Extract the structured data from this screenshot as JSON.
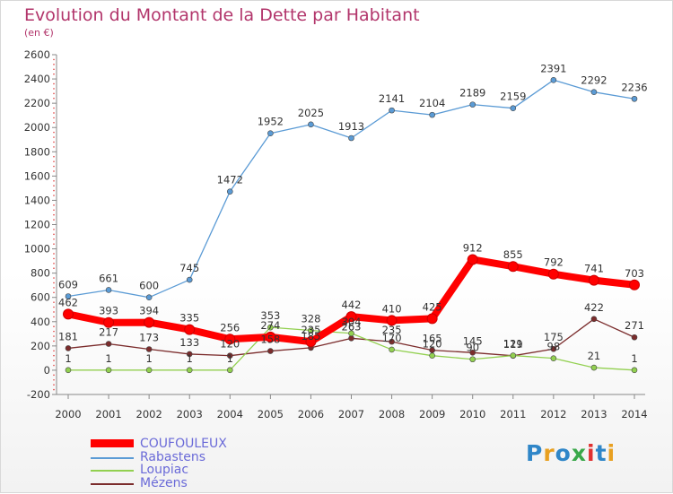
{
  "header": {
    "title": "Evolution du Montant de la Dette par Habitant",
    "subtitle": "(en €)"
  },
  "logo": {
    "text": "Proxiti"
  },
  "chart_data": {
    "type": "line",
    "title": "Evolution du Montant de la Dette par Habitant",
    "subtitle": "(en €)",
    "xlabel": "",
    "ylabel": "",
    "x": [
      "2000",
      "2001",
      "2002",
      "2003",
      "2004",
      "2005",
      "2006",
      "2007",
      "2008",
      "2009",
      "2010",
      "2011",
      "2012",
      "2013",
      "2014"
    ],
    "ylim": [
      -200,
      2600
    ],
    "yticks": [
      -200,
      0,
      200,
      400,
      600,
      800,
      1000,
      1200,
      1400,
      1600,
      1800,
      2000,
      2200,
      2400,
      2600
    ],
    "grid": false,
    "legend": "bottom-left",
    "series": [
      {
        "name": "COUFOULEUX",
        "color": "#ff0000",
        "values": [
          462,
          393,
          394,
          335,
          256,
          274,
          235,
          442,
          410,
          425,
          912,
          855,
          792,
          741,
          703
        ]
      },
      {
        "name": "Rabastens",
        "color": "#5b9bd5",
        "values": [
          609,
          661,
          600,
          745,
          1472,
          1952,
          2025,
          1913,
          2141,
          2104,
          2189,
          2159,
          2391,
          2292,
          2236
        ]
      },
      {
        "name": "Loupiac",
        "color": "#92d050",
        "values": [
          1,
          1,
          1,
          1,
          1,
          353,
          328,
          304,
          170,
          120,
          90,
          121,
          98,
          21,
          1
        ]
      },
      {
        "name": "Mézens",
        "color": "#7b2c2c",
        "values": [
          181,
          217,
          173,
          133,
          120,
          158,
          185,
          263,
          235,
          165,
          145,
          119,
          175,
          422,
          271
        ]
      }
    ]
  }
}
